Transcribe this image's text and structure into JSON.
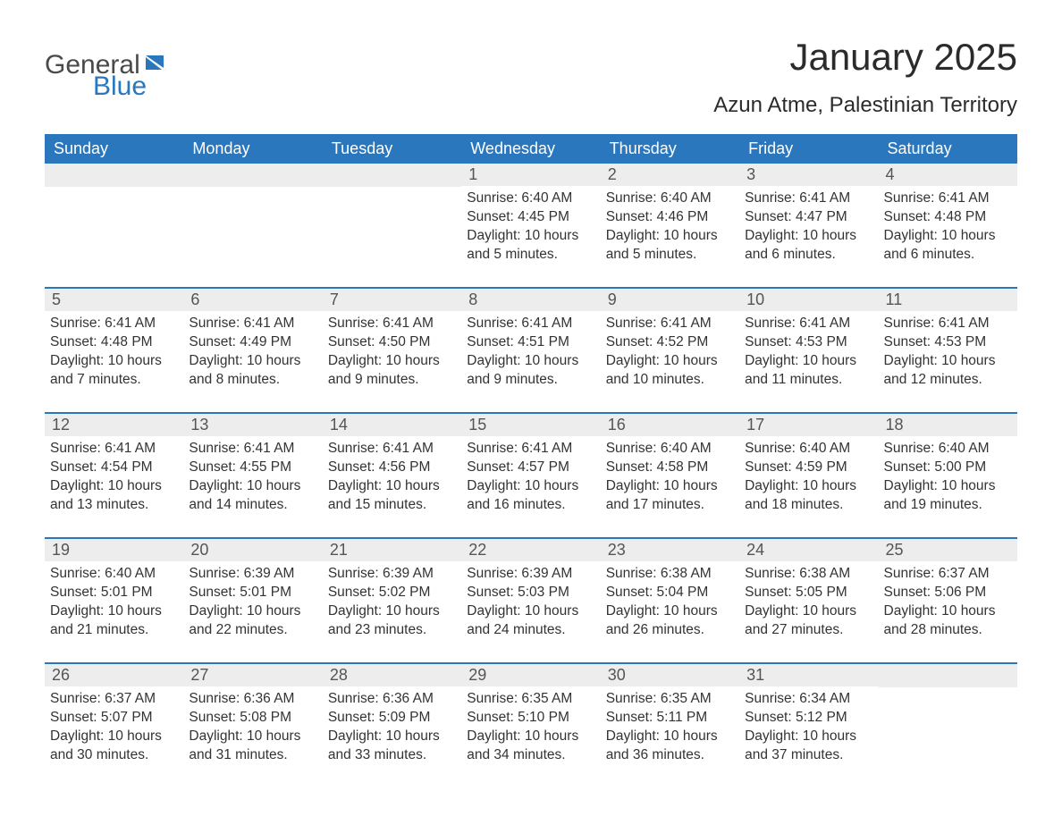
{
  "brand": {
    "word1": "General",
    "word2": "Blue",
    "word1_color": "#4a4a4a",
    "word2_color": "#2a77bd",
    "icon_color": "#2a77bd"
  },
  "title": "January 2025",
  "location": "Azun Atme, Palestinian Territory",
  "colors": {
    "header_bg": "#2a77bd",
    "header_text": "#ffffff",
    "strip_bg": "#ededed",
    "strip_text": "#555555",
    "body_text": "#333333",
    "week_divider": "#2a77bd",
    "page_bg": "#ffffff"
  },
  "typography": {
    "title_fontsize": 42,
    "location_fontsize": 24,
    "header_fontsize": 18,
    "daynum_fontsize": 18,
    "body_fontsize": 15.5
  },
  "day_names": [
    "Sunday",
    "Monday",
    "Tuesday",
    "Wednesday",
    "Thursday",
    "Friday",
    "Saturday"
  ],
  "weeks": [
    [
      null,
      null,
      null,
      {
        "n": "1",
        "sunrise": "Sunrise: 6:40 AM",
        "sunset": "Sunset: 4:45 PM",
        "daylight": "Daylight: 10 hours and 5 minutes."
      },
      {
        "n": "2",
        "sunrise": "Sunrise: 6:40 AM",
        "sunset": "Sunset: 4:46 PM",
        "daylight": "Daylight: 10 hours and 5 minutes."
      },
      {
        "n": "3",
        "sunrise": "Sunrise: 6:41 AM",
        "sunset": "Sunset: 4:47 PM",
        "daylight": "Daylight: 10 hours and 6 minutes."
      },
      {
        "n": "4",
        "sunrise": "Sunrise: 6:41 AM",
        "sunset": "Sunset: 4:48 PM",
        "daylight": "Daylight: 10 hours and 6 minutes."
      }
    ],
    [
      {
        "n": "5",
        "sunrise": "Sunrise: 6:41 AM",
        "sunset": "Sunset: 4:48 PM",
        "daylight": "Daylight: 10 hours and 7 minutes."
      },
      {
        "n": "6",
        "sunrise": "Sunrise: 6:41 AM",
        "sunset": "Sunset: 4:49 PM",
        "daylight": "Daylight: 10 hours and 8 minutes."
      },
      {
        "n": "7",
        "sunrise": "Sunrise: 6:41 AM",
        "sunset": "Sunset: 4:50 PM",
        "daylight": "Daylight: 10 hours and 9 minutes."
      },
      {
        "n": "8",
        "sunrise": "Sunrise: 6:41 AM",
        "sunset": "Sunset: 4:51 PM",
        "daylight": "Daylight: 10 hours and 9 minutes."
      },
      {
        "n": "9",
        "sunrise": "Sunrise: 6:41 AM",
        "sunset": "Sunset: 4:52 PM",
        "daylight": "Daylight: 10 hours and 10 minutes."
      },
      {
        "n": "10",
        "sunrise": "Sunrise: 6:41 AM",
        "sunset": "Sunset: 4:53 PM",
        "daylight": "Daylight: 10 hours and 11 minutes."
      },
      {
        "n": "11",
        "sunrise": "Sunrise: 6:41 AM",
        "sunset": "Sunset: 4:53 PM",
        "daylight": "Daylight: 10 hours and 12 minutes."
      }
    ],
    [
      {
        "n": "12",
        "sunrise": "Sunrise: 6:41 AM",
        "sunset": "Sunset: 4:54 PM",
        "daylight": "Daylight: 10 hours and 13 minutes."
      },
      {
        "n": "13",
        "sunrise": "Sunrise: 6:41 AM",
        "sunset": "Sunset: 4:55 PM",
        "daylight": "Daylight: 10 hours and 14 minutes."
      },
      {
        "n": "14",
        "sunrise": "Sunrise: 6:41 AM",
        "sunset": "Sunset: 4:56 PM",
        "daylight": "Daylight: 10 hours and 15 minutes."
      },
      {
        "n": "15",
        "sunrise": "Sunrise: 6:41 AM",
        "sunset": "Sunset: 4:57 PM",
        "daylight": "Daylight: 10 hours and 16 minutes."
      },
      {
        "n": "16",
        "sunrise": "Sunrise: 6:40 AM",
        "sunset": "Sunset: 4:58 PM",
        "daylight": "Daylight: 10 hours and 17 minutes."
      },
      {
        "n": "17",
        "sunrise": "Sunrise: 6:40 AM",
        "sunset": "Sunset: 4:59 PM",
        "daylight": "Daylight: 10 hours and 18 minutes."
      },
      {
        "n": "18",
        "sunrise": "Sunrise: 6:40 AM",
        "sunset": "Sunset: 5:00 PM",
        "daylight": "Daylight: 10 hours and 19 minutes."
      }
    ],
    [
      {
        "n": "19",
        "sunrise": "Sunrise: 6:40 AM",
        "sunset": "Sunset: 5:01 PM",
        "daylight": "Daylight: 10 hours and 21 minutes."
      },
      {
        "n": "20",
        "sunrise": "Sunrise: 6:39 AM",
        "sunset": "Sunset: 5:01 PM",
        "daylight": "Daylight: 10 hours and 22 minutes."
      },
      {
        "n": "21",
        "sunrise": "Sunrise: 6:39 AM",
        "sunset": "Sunset: 5:02 PM",
        "daylight": "Daylight: 10 hours and 23 minutes."
      },
      {
        "n": "22",
        "sunrise": "Sunrise: 6:39 AM",
        "sunset": "Sunset: 5:03 PM",
        "daylight": "Daylight: 10 hours and 24 minutes."
      },
      {
        "n": "23",
        "sunrise": "Sunrise: 6:38 AM",
        "sunset": "Sunset: 5:04 PM",
        "daylight": "Daylight: 10 hours and 26 minutes."
      },
      {
        "n": "24",
        "sunrise": "Sunrise: 6:38 AM",
        "sunset": "Sunset: 5:05 PM",
        "daylight": "Daylight: 10 hours and 27 minutes."
      },
      {
        "n": "25",
        "sunrise": "Sunrise: 6:37 AM",
        "sunset": "Sunset: 5:06 PM",
        "daylight": "Daylight: 10 hours and 28 minutes."
      }
    ],
    [
      {
        "n": "26",
        "sunrise": "Sunrise: 6:37 AM",
        "sunset": "Sunset: 5:07 PM",
        "daylight": "Daylight: 10 hours and 30 minutes."
      },
      {
        "n": "27",
        "sunrise": "Sunrise: 6:36 AM",
        "sunset": "Sunset: 5:08 PM",
        "daylight": "Daylight: 10 hours and 31 minutes."
      },
      {
        "n": "28",
        "sunrise": "Sunrise: 6:36 AM",
        "sunset": "Sunset: 5:09 PM",
        "daylight": "Daylight: 10 hours and 33 minutes."
      },
      {
        "n": "29",
        "sunrise": "Sunrise: 6:35 AM",
        "sunset": "Sunset: 5:10 PM",
        "daylight": "Daylight: 10 hours and 34 minutes."
      },
      {
        "n": "30",
        "sunrise": "Sunrise: 6:35 AM",
        "sunset": "Sunset: 5:11 PM",
        "daylight": "Daylight: 10 hours and 36 minutes."
      },
      {
        "n": "31",
        "sunrise": "Sunrise: 6:34 AM",
        "sunset": "Sunset: 5:12 PM",
        "daylight": "Daylight: 10 hours and 37 minutes."
      },
      null
    ]
  ]
}
